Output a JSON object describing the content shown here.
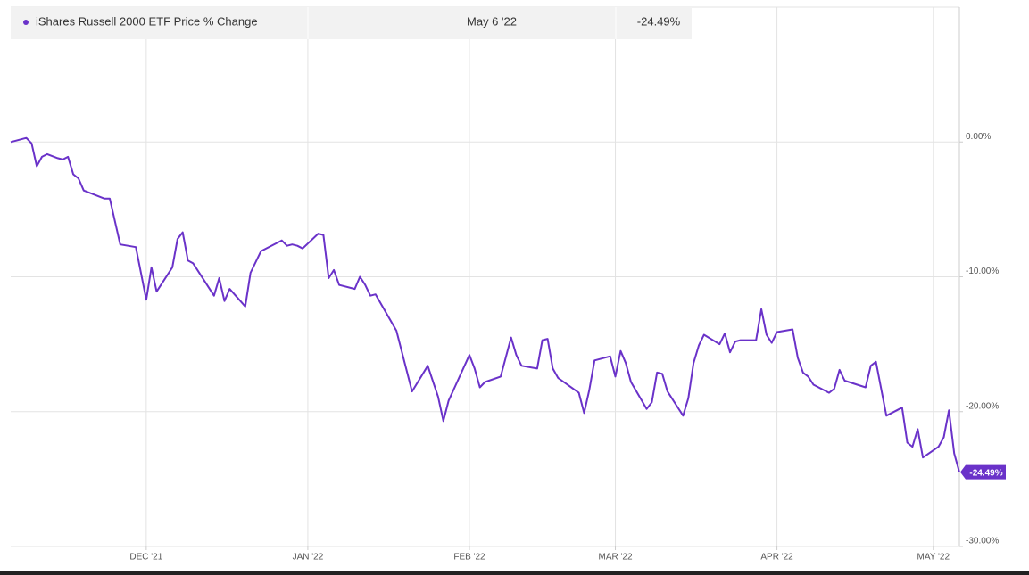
{
  "chart_data": {
    "type": "line",
    "series": [
      {
        "name": "iShares Russell 2000 ETF Price % Change",
        "color": "#6a32c9",
        "values": [
          0,
          0.3,
          -0.1,
          -1.8,
          -1.1,
          -0.9,
          -1.2,
          -1.3,
          -1.1,
          -2.4,
          -2.7,
          -3.6,
          -4.2,
          -4.2,
          -7.6,
          -7.8,
          -11.7,
          -9.3,
          -11.1,
          -9.3,
          -7.2,
          -6.7,
          -8.8,
          -9.0,
          -10.8,
          -11.4,
          -10.1,
          -11.8,
          -10.9,
          -12.2,
          -9.7,
          -8.1,
          -7.3,
          -7.7,
          -7.6,
          -7.7,
          -7.9,
          -6.8,
          -6.9,
          -10.1,
          -9.5,
          -10.6,
          -10.9,
          -10.0,
          -10.6,
          -11.4,
          -11.3,
          -14.0,
          -18.5,
          -16.6,
          -18.9,
          -20.7,
          -19.2,
          -15.8,
          -16.8,
          -18.2,
          -17.8,
          -17.4,
          -14.5,
          -15.8,
          -16.6,
          -16.8,
          -14.7,
          -14.6,
          -16.8,
          -17.5,
          -18.6,
          -20.1,
          -18.4,
          -16.2,
          -15.9,
          -17.4,
          -15.5,
          -16.4,
          -17.8,
          -19.8,
          -19.3,
          -17.1,
          -17.2,
          -18.5,
          -20.3,
          -19.0,
          -16.4,
          -15.1,
          -14.3,
          -15.0,
          -14.2,
          -15.6,
          -14.8,
          -14.7,
          -14.7,
          -12.4,
          -14.3,
          -14.9,
          -14.1,
          -13.9,
          -16.0,
          -17.1,
          -17.4,
          -18.0,
          -18.6,
          -18.3,
          -16.9,
          -17.7,
          -18.2,
          -16.6,
          -16.3,
          -20.3,
          -19.7,
          -22.3,
          -22.6,
          -21.3,
          -23.4,
          -22.6,
          -21.9,
          -19.9,
          -23.1,
          -24.49
        ]
      }
    ],
    "x": [
      "2021-11-05",
      "2021-11-08",
      "2021-11-09",
      "2021-11-10",
      "2021-11-11",
      "2021-11-12",
      "2021-11-14",
      "2021-11-15",
      "2021-11-16",
      "2021-11-17",
      "2021-11-18",
      "2021-11-19",
      "2021-11-23",
      "2021-11-24",
      "2021-11-26",
      "2021-11-29",
      "2021-12-01",
      "2021-12-02",
      "2021-12-03",
      "2021-12-06",
      "2021-12-07",
      "2021-12-08",
      "2021-12-09",
      "2021-12-10",
      "2021-12-13",
      "2021-12-14",
      "2021-12-15",
      "2021-12-16",
      "2021-12-17",
      "2021-12-20",
      "2021-12-21",
      "2021-12-23",
      "2021-12-27",
      "2021-12-28",
      "2021-12-29",
      "2021-12-30",
      "2021-12-31",
      "2022-01-03",
      "2022-01-04",
      "2022-01-05",
      "2022-01-06",
      "2022-01-07",
      "2022-01-10",
      "2022-01-11",
      "2022-01-12",
      "2022-01-13",
      "2022-01-14",
      "2022-01-18",
      "2022-01-21",
      "2022-01-24",
      "2022-01-26",
      "2022-01-27",
      "2022-01-28",
      "2022-02-01",
      "2022-02-02",
      "2022-02-03",
      "2022-02-04",
      "2022-02-07",
      "2022-02-09",
      "2022-02-10",
      "2022-02-11",
      "2022-02-14",
      "2022-02-15",
      "2022-02-16",
      "2022-02-17",
      "2022-02-18",
      "2022-02-22",
      "2022-02-23",
      "2022-02-24",
      "2022-02-25",
      "2022-02-28",
      "2022-03-01",
      "2022-03-02",
      "2022-03-03",
      "2022-03-04",
      "2022-03-07",
      "2022-03-08",
      "2022-03-09",
      "2022-03-10",
      "2022-03-11",
      "2022-03-14",
      "2022-03-15",
      "2022-03-16",
      "2022-03-17",
      "2022-03-18",
      "2022-03-21",
      "2022-03-22",
      "2022-03-23",
      "2022-03-24",
      "2022-03-25",
      "2022-03-28",
      "2022-03-29",
      "2022-03-30",
      "2022-03-31",
      "2022-04-01",
      "2022-04-04",
      "2022-04-05",
      "2022-04-06",
      "2022-04-07",
      "2022-04-08",
      "2022-04-11",
      "2022-04-12",
      "2022-04-13",
      "2022-04-14",
      "2022-04-18",
      "2022-04-19",
      "2022-04-20",
      "2022-04-22",
      "2022-04-25",
      "2022-04-26",
      "2022-04-27",
      "2022-04-28",
      "2022-04-29",
      "2022-05-02",
      "2022-05-03",
      "2022-05-04",
      "2022-05-05",
      "2022-05-06"
    ],
    "xlim": [
      "2021-11-05",
      "2022-05-06"
    ],
    "xticks": [
      {
        "value": "2021-12-01",
        "label": "DEC '21"
      },
      {
        "value": "2022-01-01",
        "label": "JAN '22"
      },
      {
        "value": "2022-02-01",
        "label": "FEB '22"
      },
      {
        "value": "2022-03-01",
        "label": "MAR '22"
      },
      {
        "value": "2022-04-01",
        "label": "APR '22"
      },
      {
        "value": "2022-05-01",
        "label": "MAY '22"
      }
    ],
    "ylim": [
      -30,
      10
    ],
    "yticks": [
      {
        "value": 0,
        "label": "0.00%"
      },
      {
        "value": -10,
        "label": "-10.00%"
      },
      {
        "value": -20,
        "label": "-20.00%"
      },
      {
        "value": -30,
        "label": "-30.00%"
      }
    ],
    "grid": true,
    "last": {
      "date": "May 6 '22",
      "value": -24.49,
      "label": "-24.49%"
    }
  }
}
